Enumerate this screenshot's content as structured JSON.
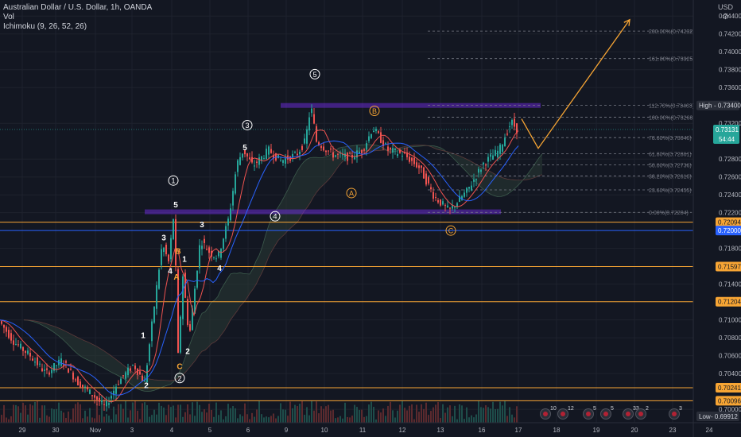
{
  "header": {
    "symbol_line": "Australian Dollar / U.S. Dollar, 1h, OANDA",
    "vol_line": "Vol",
    "ichimoku_line": "Ichimoku (9, 26, 52, 26)",
    "currency": "USD",
    "gear_icon": "gear-icon"
  },
  "colors": {
    "background": "#131722",
    "up": "#26a69a",
    "down": "#ef5350",
    "orange": "#f7a534",
    "purple": "#7b2ff7",
    "blue": "#2962ff",
    "fib": "#787b86"
  },
  "price_axis": {
    "ticks": [
      "0.74400",
      "0.74200",
      "0.74000",
      "0.73800",
      "0.73600",
      "0.73200",
      "0.72800",
      "0.72600",
      "0.72400",
      "0.72200",
      "0.71800",
      "0.71400",
      "0.71000",
      "0.70800",
      "0.70600",
      "0.70400",
      "0.70000"
    ],
    "high_label": "High",
    "high_value": "0.73400",
    "last_price": "0.73131",
    "countdown": "54:44",
    "low_label": "Low",
    "low_value": "0.69912",
    "level_labels": [
      {
        "value": "0.72094",
        "type": "orange"
      },
      {
        "value": "0.72000",
        "type": "blue"
      },
      {
        "value": "0.71597",
        "type": "orange"
      },
      {
        "value": "0.71204",
        "type": "orange"
      },
      {
        "value": "0.70241",
        "type": "orange"
      },
      {
        "value": "0.70096",
        "type": "orange"
      }
    ]
  },
  "time_axis": {
    "labels": [
      "29",
      "30",
      "Nov",
      "3",
      "4",
      "5",
      "6",
      "9",
      "10",
      "11",
      "12",
      "13",
      "16",
      "17",
      "18",
      "19",
      "20",
      "23",
      "24"
    ]
  },
  "chart_data": {
    "type": "candlestick",
    "symbol": "AUD/USD",
    "interval": "1h",
    "ylim": [
      0.6985,
      0.7458
    ],
    "horizontal_levels": [
      {
        "price": 0.72094,
        "marker": "D"
      },
      {
        "price": 0.71597,
        "marker": "D"
      },
      {
        "price": 0.71204,
        "marker": "D"
      },
      {
        "price": 0.70241,
        "marker": "D"
      },
      {
        "price": 0.70096,
        "marker": "D"
      },
      {
        "price": 0.72,
        "marker": ""
      }
    ],
    "fibonacci": [
      {
        "label": "200.00%(0.74232)",
        "price": 0.74232
      },
      {
        "label": "161.80%(0.73925)",
        "price": 0.73925
      },
      {
        "label": "112.70%(0.73403)",
        "price": 0.73403
      },
      {
        "label": "100.00%(0.73268)",
        "price": 0.73268
      },
      {
        "label": "78.60%(0.73040)",
        "price": 0.7304
      },
      {
        "label": "61.80%(0.72861)",
        "price": 0.72861
      },
      {
        "label": "50.00%(0.72736)",
        "price": 0.72736
      },
      {
        "label": "38.20%(0.72610)",
        "price": 0.7261
      },
      {
        "label": "23.60%(0.72455)",
        "price": 0.72455
      },
      {
        "label": "0.00%(0.72204)",
        "price": 0.72204
      }
    ],
    "wave_labels": [
      {
        "text": "1",
        "t": 218,
        "price": 0.7256,
        "style": "circle-white"
      },
      {
        "text": "5",
        "t": 221,
        "price": 0.7229,
        "style": "plain-white"
      },
      {
        "text": "2",
        "t": 226,
        "price": 0.7035,
        "style": "circle-white"
      },
      {
        "text": "3",
        "t": 311,
        "price": 0.7318,
        "style": "circle-white"
      },
      {
        "text": "5",
        "t": 308,
        "price": 0.7293,
        "style": "plain-white"
      },
      {
        "text": "4",
        "t": 346,
        "price": 0.7216,
        "style": "circle-white"
      },
      {
        "text": "5",
        "t": 396,
        "price": 0.7375,
        "style": "circle-white"
      },
      {
        "text": "B",
        "t": 471,
        "price": 0.7334,
        "style": "circle-orange"
      },
      {
        "text": "A",
        "t": 442,
        "price": 0.7242,
        "style": "circle-orange"
      },
      {
        "text": "C",
        "t": 567,
        "price": 0.72,
        "style": "circle-orange"
      },
      {
        "text": "3",
        "t": 206,
        "price": 0.7192,
        "style": "plain-white"
      },
      {
        "text": "4",
        "t": 214,
        "price": 0.7155,
        "style": "plain-white"
      },
      {
        "text": "1",
        "t": 180,
        "price": 0.7083,
        "style": "plain-white"
      },
      {
        "text": "2",
        "t": 184,
        "price": 0.7027,
        "style": "plain-white"
      },
      {
        "text": "B",
        "t": 224,
        "price": 0.7177,
        "style": "plain-orange"
      },
      {
        "text": "A",
        "t": 222,
        "price": 0.7148,
        "style": "plain-orange"
      },
      {
        "text": "C",
        "t": 226,
        "price": 0.7048,
        "style": "plain-orange"
      },
      {
        "text": "1",
        "t": 232,
        "price": 0.7168,
        "style": "plain-white"
      },
      {
        "text": "2",
        "t": 236,
        "price": 0.7065,
        "style": "plain-white"
      },
      {
        "text": "3",
        "t": 254,
        "price": 0.7207,
        "style": "plain-white"
      },
      {
        "text": "4",
        "t": 276,
        "price": 0.7158,
        "style": "plain-white"
      }
    ],
    "projection": [
      {
        "t": 656,
        "price": 0.7325
      },
      {
        "t": 677,
        "price": 0.7292
      },
      {
        "t": 792,
        "price": 0.7436
      }
    ],
    "supply_zones": [
      {
        "t0": 353,
        "t1": 680,
        "price": 0.734
      },
      {
        "t0": 182,
        "t1": 630,
        "price": 0.7221
      }
    ]
  },
  "events": [
    {
      "t": 686,
      "count": "10"
    },
    {
      "t": 708,
      "count": "12"
    },
    {
      "t": 740,
      "count": "5"
    },
    {
      "t": 762,
      "count": "5"
    },
    {
      "t": 790,
      "count": "33"
    },
    {
      "t": 806,
      "count": "2"
    },
    {
      "t": 848,
      "count": "3"
    }
  ]
}
